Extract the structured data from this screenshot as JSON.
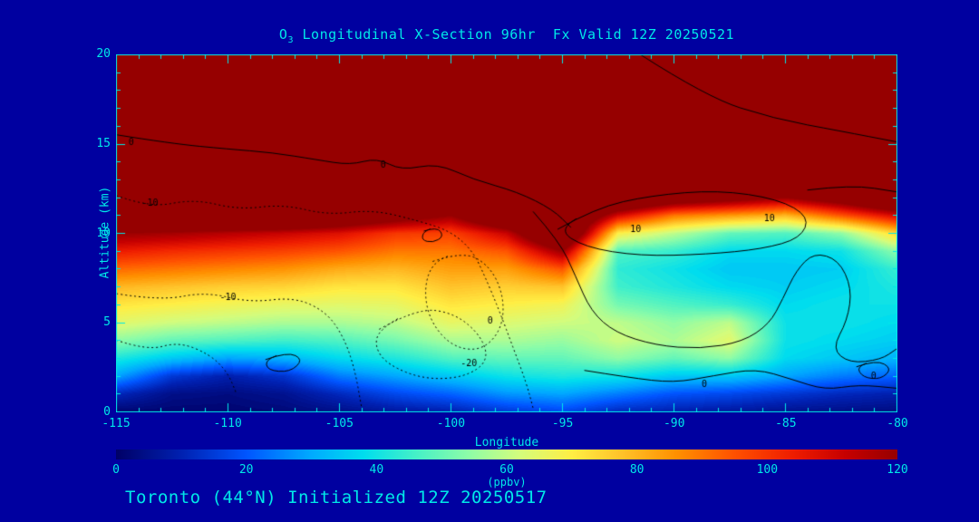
{
  "title": {
    "prefix": "O",
    "sub": "3",
    "rest": " Longitudinal X-Section 96hr  Fx Valid 12Z 20250521"
  },
  "footer": {
    "text": "Toronto (44°N) Initialized 12Z 20250517"
  },
  "axes": {
    "x_label": "Longitude",
    "y_label": "Altitude (km)",
    "x_ticks": [
      -115,
      -110,
      -105,
      -100,
      -95,
      -90,
      -85,
      -80
    ],
    "y_ticks": [
      0,
      5,
      10,
      15,
      20
    ],
    "x_range": [
      -115,
      -80
    ],
    "y_range": [
      0,
      20
    ],
    "x_minor_step": 1,
    "y_minor_step": 1
  },
  "colorbar": {
    "label": "(ppbv)",
    "ticks": [
      0,
      20,
      40,
      60,
      80,
      100,
      120
    ],
    "min": 0,
    "max": 120,
    "stops": [
      [
        0,
        "#000066"
      ],
      [
        10,
        "#0020B0"
      ],
      [
        20,
        "#0055FF"
      ],
      [
        30,
        "#00AAFF"
      ],
      [
        38,
        "#00DDEE"
      ],
      [
        46,
        "#44F0C8"
      ],
      [
        54,
        "#8CFCA8"
      ],
      [
        62,
        "#D4FC7C"
      ],
      [
        70,
        "#FFEE44"
      ],
      [
        78,
        "#FFC028"
      ],
      [
        86,
        "#FF9000"
      ],
      [
        95,
        "#FF5000"
      ],
      [
        104,
        "#EE1C00"
      ],
      [
        112,
        "#C60000"
      ],
      [
        120,
        "#960000"
      ]
    ]
  },
  "colors": {
    "background": "#0000A0",
    "text": "#00E8E8",
    "frame": "#00E8E8",
    "contour_line": "#000000"
  },
  "chart_data": {
    "type": "heatmap",
    "title": "O3 Longitudinal X-Section 96hr  Fx Valid 12Z 20250521",
    "xlabel": "Longitude",
    "ylabel": "Altitude (km)",
    "units": "ppbv",
    "x_range": [
      -115,
      -80
    ],
    "y_range": [
      0,
      20
    ],
    "colorbar_range": [
      0,
      120
    ],
    "lons": [
      -115,
      -112.5,
      -110,
      -107.5,
      -105,
      -102.5,
      -100,
      -97.5,
      -95,
      -92.5,
      -90,
      -87.5,
      -85,
      -82.5,
      -80
    ],
    "alts_km": [
      0,
      1,
      2,
      3,
      4,
      5,
      6,
      7,
      8,
      9,
      10,
      11,
      12,
      14,
      16,
      20
    ],
    "ozone_ppbv_by_lon": [
      [
        2,
        12,
        30,
        42,
        55,
        65,
        72,
        80,
        92,
        105,
        120,
        150,
        150,
        150,
        150,
        150
      ],
      [
        2,
        5,
        15,
        35,
        50,
        62,
        70,
        78,
        90,
        102,
        118,
        150,
        150,
        150,
        150,
        150
      ],
      [
        2,
        4,
        10,
        30,
        48,
        60,
        68,
        76,
        88,
        100,
        115,
        150,
        150,
        150,
        150,
        150
      ],
      [
        3,
        6,
        14,
        32,
        46,
        58,
        66,
        75,
        86,
        98,
        112,
        150,
        150,
        150,
        150,
        150
      ],
      [
        5,
        12,
        25,
        38,
        48,
        58,
        65,
        72,
        82,
        95,
        108,
        140,
        150,
        150,
        150,
        150
      ],
      [
        8,
        18,
        30,
        42,
        52,
        60,
        66,
        72,
        80,
        90,
        100,
        130,
        150,
        150,
        150,
        150
      ],
      [
        10,
        22,
        35,
        48,
        58,
        66,
        72,
        78,
        84,
        90,
        98,
        120,
        150,
        150,
        150,
        150
      ],
      [
        15,
        28,
        40,
        50,
        58,
        64,
        70,
        76,
        84,
        95,
        112,
        145,
        150,
        150,
        150,
        150
      ],
      [
        18,
        30,
        42,
        50,
        56,
        62,
        68,
        78,
        95,
        120,
        150,
        150,
        150,
        150,
        150,
        150
      ],
      [
        12,
        25,
        40,
        55,
        62,
        60,
        52,
        46,
        44,
        48,
        70,
        110,
        150,
        150,
        150,
        150
      ],
      [
        10,
        20,
        35,
        50,
        58,
        55,
        48,
        42,
        40,
        45,
        60,
        90,
        135,
        150,
        150,
        150
      ],
      [
        8,
        18,
        35,
        55,
        65,
        60,
        45,
        38,
        35,
        38,
        50,
        85,
        128,
        150,
        150,
        150
      ],
      [
        6,
        15,
        30,
        38,
        40,
        40,
        38,
        36,
        35,
        38,
        48,
        80,
        120,
        150,
        150,
        150
      ],
      [
        5,
        12,
        25,
        35,
        38,
        40,
        40,
        38,
        36,
        40,
        55,
        95,
        132,
        150,
        150,
        150
      ],
      [
        4,
        10,
        22,
        32,
        36,
        38,
        40,
        42,
        45,
        55,
        75,
        110,
        150,
        150,
        150,
        150
      ]
    ],
    "contours": [
      {
        "label": "0",
        "style": "solid",
        "closed": false,
        "lp": [
          -114.2,
          15.1
        ],
        "pts": [
          [
            -115,
            15.5
          ],
          [
            -112.5,
            15.0
          ],
          [
            -110,
            14.7
          ],
          [
            -108,
            14.5
          ],
          [
            -106,
            14.1
          ],
          [
            -104.5,
            13.8
          ],
          [
            -103.3,
            14.2
          ],
          [
            -102.2,
            13.5
          ],
          [
            -100.6,
            13.9
          ],
          [
            -99,
            13.0
          ],
          [
            -97,
            12.3
          ],
          [
            -95.4,
            11.3
          ],
          [
            -94.6,
            10.3
          ]
        ]
      },
      {
        "label": "-10",
        "style": "dotted",
        "closed": false,
        "lp": [
          -113.6,
          11.7
        ],
        "pts": [
          [
            -115,
            12.1
          ],
          [
            -113.5,
            11.4
          ],
          [
            -111.5,
            11.9
          ],
          [
            -109.5,
            11.3
          ],
          [
            -107.5,
            11.6
          ],
          [
            -105.5,
            11.0
          ],
          [
            -103.5,
            11.3
          ],
          [
            -101.5,
            10.7
          ],
          [
            -100,
            10.1
          ],
          [
            -99,
            9.0
          ],
          [
            -98.4,
            7.4
          ],
          [
            -97.8,
            5.6
          ],
          [
            -97.2,
            3.6
          ],
          [
            -96.6,
            1.6
          ],
          [
            -96.3,
            0.2
          ]
        ]
      },
      {
        "label": "-20",
        "style": "dotted",
        "closed": true,
        "lp": [
          -99.3,
          2.7
        ],
        "pts": [
          [
            -103.2,
            4.6
          ],
          [
            -101.5,
            5.8
          ],
          [
            -99.8,
            5.5
          ],
          [
            -98.6,
            4.2
          ],
          [
            -98.3,
            2.8
          ],
          [
            -99.4,
            1.9
          ],
          [
            -101.2,
            1.8
          ],
          [
            -102.8,
            2.6
          ],
          [
            -103.4,
            3.6
          ]
        ]
      },
      {
        "label": "0",
        "style": "dotted",
        "closed": true,
        "lp": [
          -98.1,
          5.1
        ],
        "pts": [
          [
            -100.8,
            8.4
          ],
          [
            -99.4,
            9.0
          ],
          [
            -98.2,
            8.1
          ],
          [
            -97.6,
            6.4
          ],
          [
            -97.7,
            4.6
          ],
          [
            -98.6,
            3.4
          ],
          [
            -99.9,
            3.6
          ],
          [
            -100.9,
            5.0
          ],
          [
            -101.2,
            6.8
          ]
        ]
      },
      {
        "label": "10",
        "style": "solid",
        "closed": true,
        "lp": [
          -91.7,
          10.2
        ],
        "pts": [
          [
            -95.2,
            10.2
          ],
          [
            -93.5,
            11.4
          ],
          [
            -91,
            12.1
          ],
          [
            -88,
            12.4
          ],
          [
            -85.3,
            11.9
          ],
          [
            -83.9,
            10.9
          ],
          [
            -84.3,
            9.7
          ],
          [
            -86,
            9.1
          ],
          [
            -88.5,
            8.8
          ],
          [
            -91.5,
            8.7
          ],
          [
            -94,
            9.2
          ]
        ]
      },
      {
        "label": "",
        "style": "solid",
        "closed": false,
        "lp": null,
        "pts": [
          [
            -96.3,
            11.2
          ],
          [
            -95.1,
            9.5
          ],
          [
            -94.4,
            7.6
          ],
          [
            -93.7,
            5.6
          ],
          [
            -92.6,
            4.4
          ],
          [
            -90.8,
            3.7
          ],
          [
            -88.8,
            3.5
          ],
          [
            -86.9,
            3.9
          ],
          [
            -85.7,
            4.9
          ],
          [
            -85.1,
            6.3
          ],
          [
            -84.5,
            7.9
          ],
          [
            -83.7,
            8.9
          ],
          [
            -82.6,
            8.5
          ],
          [
            -82.0,
            6.9
          ],
          [
            -82.2,
            5.1
          ],
          [
            -82.9,
            3.5
          ],
          [
            -82.1,
            2.7
          ],
          [
            -80.7,
            2.9
          ],
          [
            -80,
            3.5
          ]
        ]
      },
      {
        "label": "0",
        "style": "solid",
        "closed": false,
        "lp": [
          -88.5,
          1.5
        ],
        "pts": [
          [
            -94,
            2.3
          ],
          [
            -92,
            1.9
          ],
          [
            -90,
            1.6
          ],
          [
            -88.2,
            2.0
          ],
          [
            -86.3,
            2.4
          ],
          [
            -84.7,
            1.8
          ],
          [
            -83.2,
            1.2
          ],
          [
            -81.7,
            1.5
          ],
          [
            -80,
            1.3
          ]
        ]
      },
      {
        "label": "0",
        "style": "solid",
        "closed": true,
        "lp": [
          -80.9,
          2.0
        ],
        "pts": [
          [
            -81.8,
            2.5
          ],
          [
            -80.9,
            2.9
          ],
          [
            -80.2,
            2.4
          ],
          [
            -80.7,
            1.8
          ],
          [
            -81.5,
            1.9
          ]
        ]
      },
      {
        "label": "",
        "style": "solid",
        "closed": true,
        "lp": null,
        "pts": [
          [
            -101.2,
            10.1
          ],
          [
            -100.6,
            10.35
          ],
          [
            -100.3,
            9.8
          ],
          [
            -100.8,
            9.45
          ],
          [
            -101.3,
            9.6
          ]
        ]
      },
      {
        "label": "",
        "style": "solid",
        "closed": true,
        "lp": null,
        "pts": [
          [
            -108.3,
            2.9
          ],
          [
            -107.3,
            3.35
          ],
          [
            -106.6,
            2.9
          ],
          [
            -107.2,
            2.2
          ],
          [
            -108.2,
            2.3
          ]
        ]
      },
      {
        "label": "-10",
        "style": "dotted",
        "closed": false,
        "lp": [
          -110.1,
          6.4
        ],
        "pts": [
          [
            -115,
            6.6
          ],
          [
            -113,
            6.2
          ],
          [
            -111,
            6.7
          ],
          [
            -109,
            6.1
          ],
          [
            -107,
            6.4
          ],
          [
            -105.6,
            5.6
          ],
          [
            -104.8,
            4.2
          ],
          [
            -104.3,
            2.4
          ],
          [
            -104.0,
            0.3
          ]
        ]
      },
      {
        "label": "",
        "style": "dotted",
        "closed": false,
        "lp": null,
        "pts": [
          [
            -115,
            4.0
          ],
          [
            -113.6,
            3.4
          ],
          [
            -112.2,
            3.9
          ],
          [
            -110.8,
            3.2
          ],
          [
            -110.0,
            2.2
          ],
          [
            -109.6,
            1.0
          ]
        ]
      },
      {
        "label": "",
        "style": "solid",
        "closed": false,
        "lp": null,
        "pts": [
          [
            -91.5,
            20
          ],
          [
            -88.5,
            17.6
          ],
          [
            -85.5,
            16.4
          ],
          [
            -82.5,
            15.7
          ],
          [
            -80,
            15.1
          ]
        ]
      },
      {
        "label": "",
        "style": "solid",
        "closed": false,
        "lp": null,
        "pts": [
          [
            -84,
            12.4
          ],
          [
            -82,
            12.7
          ],
          [
            -80,
            12.3
          ]
        ]
      }
    ],
    "contour_labels_extra": [
      {
        "text": "0",
        "pos": [
          -102.9,
          13.8
        ]
      },
      {
        "text": "10",
        "pos": [
          -85.7,
          10.8
        ]
      }
    ]
  }
}
